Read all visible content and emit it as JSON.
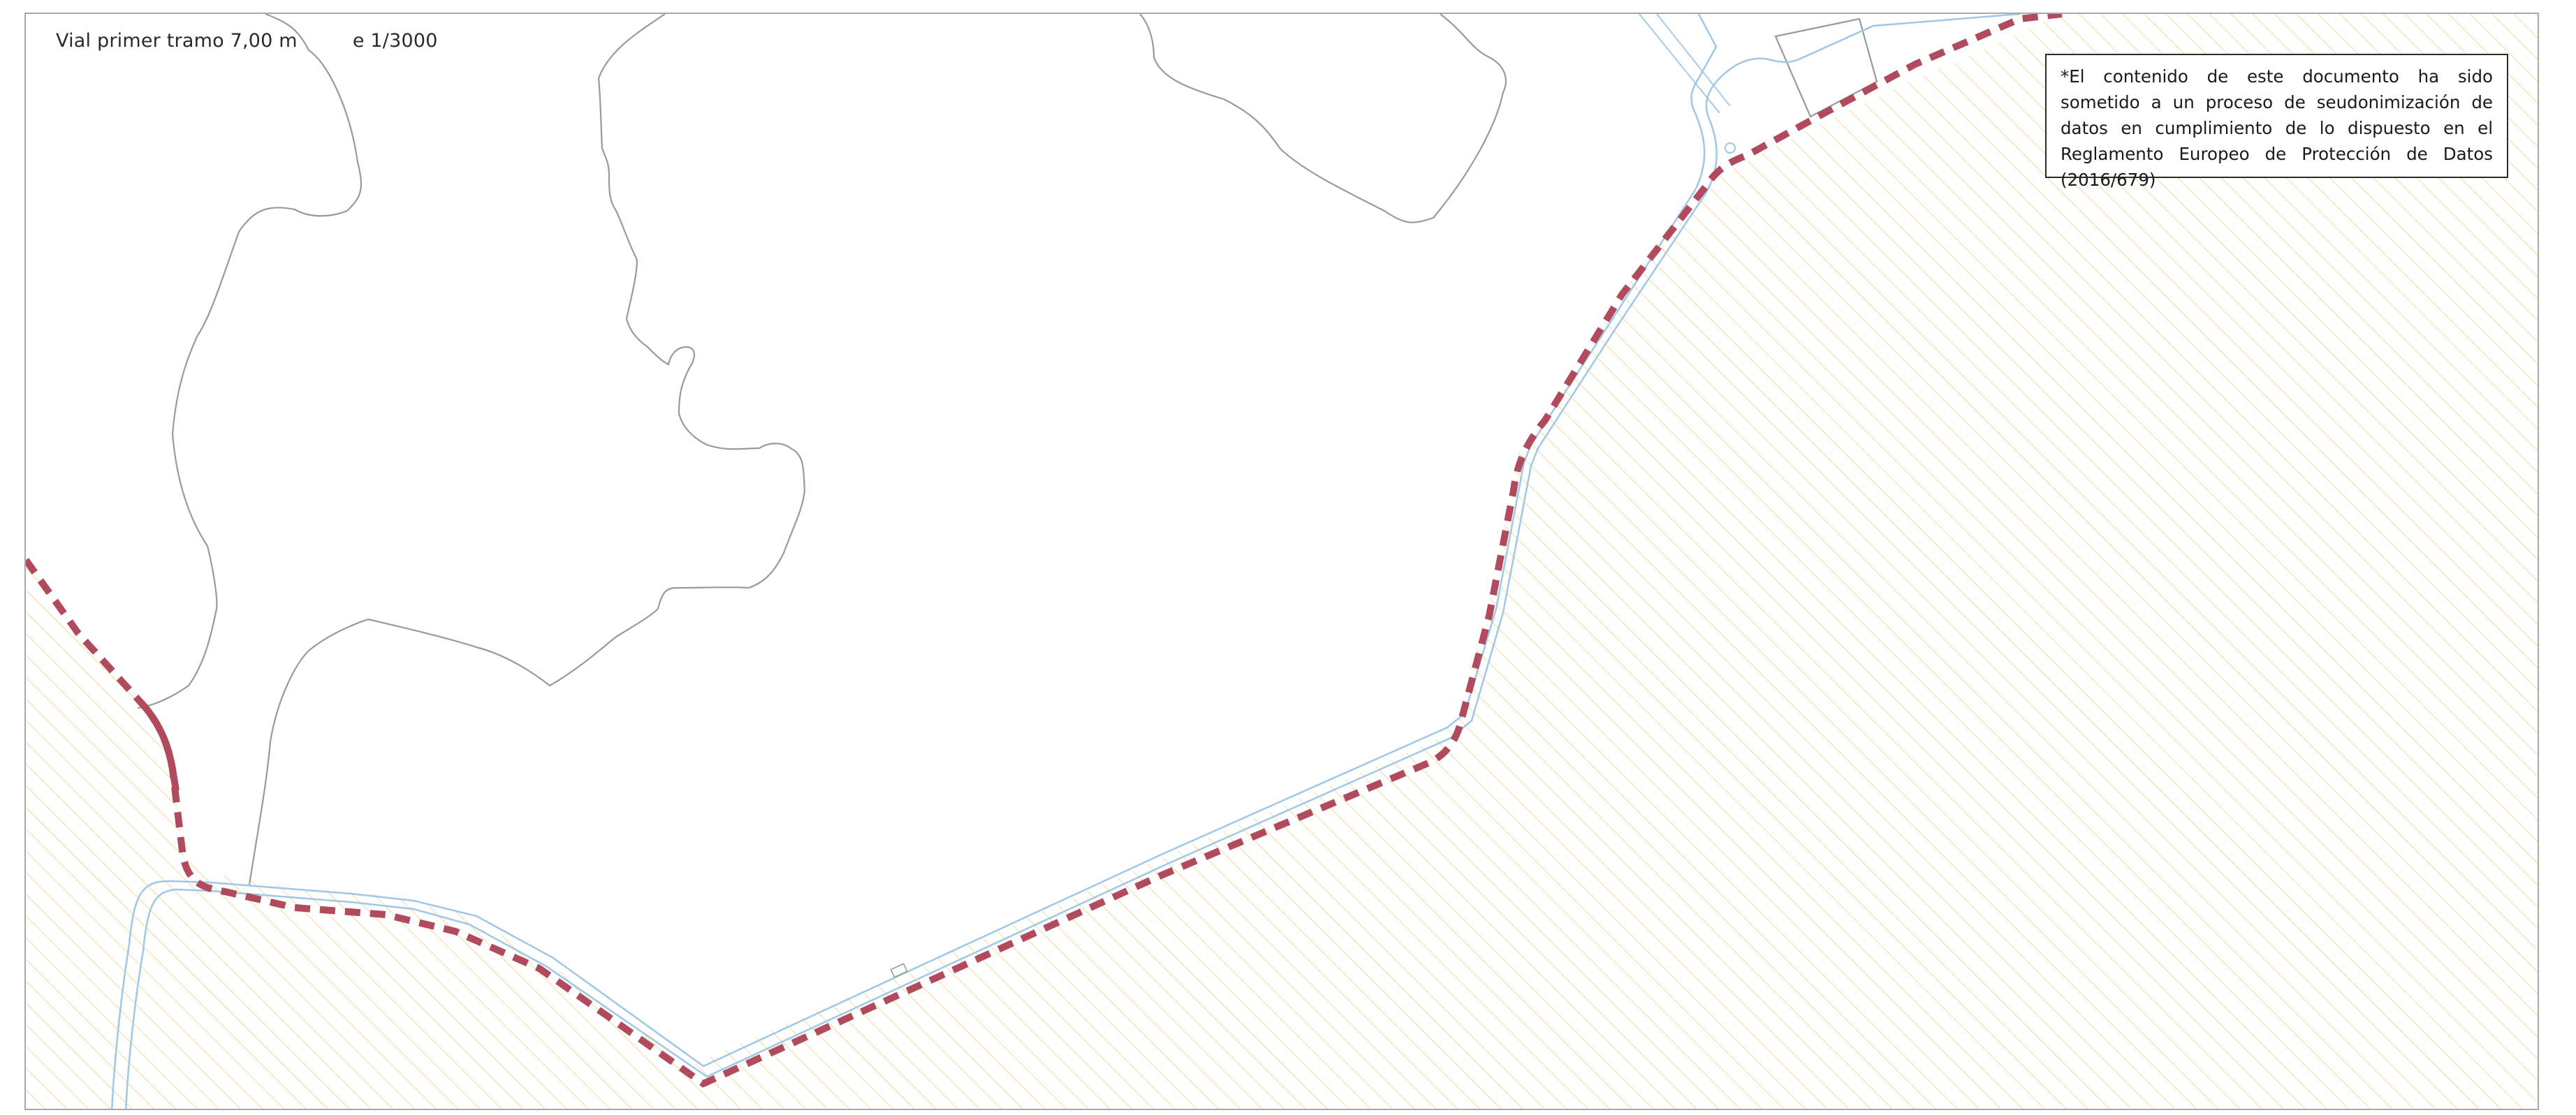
{
  "map": {
    "title": "Vial primer tramo 7,00 m         e 1/3000",
    "notice": "*El contenido de este documento ha sido sometido a un proceso de seudonimización de datos en cumplimiento de lo dispuesto en el Reglamento Europeo de Protección de Datos (2016/679)",
    "colors": {
      "frame_border": "#a9a9a9",
      "hatch": "#f4dca0",
      "road_edge": "#9ec7e8",
      "boundary_dashed": "#b04a5c",
      "contour_line": "#9a9a9a",
      "text": "#2a2a2a"
    },
    "legend_items": [
      {
        "name": "boundary-line",
        "style": "dashed",
        "color": "#b04a5c"
      },
      {
        "name": "road",
        "style": "double-line",
        "color": "#9ec7e8"
      },
      {
        "name": "hatched-area",
        "style": "diagonal-hatch",
        "color": "#f4dca0"
      }
    ]
  }
}
